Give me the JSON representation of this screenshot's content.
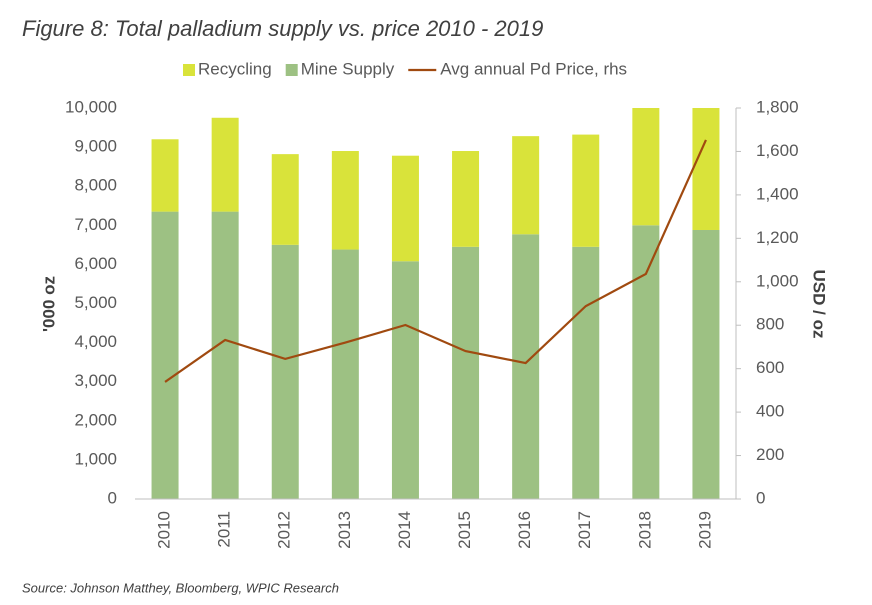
{
  "chart_data": {
    "type": "bar",
    "title": "Figure 8: Total palladium supply vs. price 2010 - 2019",
    "y_label": "'000 oz",
    "y2_label": "USD / oz",
    "source": "Source: Johnson Matthey, Bloomberg, WPIC Research",
    "categories": [
      "2010",
      "2011",
      "2012",
      "2013",
      "2014",
      "2015",
      "2016",
      "2017",
      "2018",
      "2019"
    ],
    "stacked": true,
    "series": [
      {
        "name": "Recycling",
        "color": "#d9e33a",
        "values": [
          1850,
          2400,
          2320,
          2520,
          2700,
          2450,
          2510,
          2870,
          3000,
          3120
        ]
      },
      {
        "name": "Mine Supply",
        "color": "#9dc183",
        "values": [
          7350,
          7350,
          6500,
          6380,
          6080,
          6450,
          6770,
          6450,
          7000,
          6880
        ]
      },
      {
        "name": "Avg annual Pd Price, rhs",
        "color": "#a04a10",
        "axis": "y2",
        "values": [
          539,
          732,
          645,
          720,
          801,
          681,
          626,
          888,
          1036,
          1653
        ]
      }
    ],
    "ylim": [
      0,
      10000
    ],
    "yticks": [
      0,
      {
        "value": 1000,
        "label": "1,000"
      },
      {
        "value": 2000,
        "label": "2,000"
      },
      {
        "value": 3000,
        "label": "3,000"
      },
      {
        "value": 4000,
        "label": "4,000"
      },
      {
        "value": 5000,
        "label": "5,000"
      },
      {
        "value": 6000,
        "label": "6,000"
      },
      {
        "value": 7000,
        "label": "7,000"
      },
      {
        "value": 8000,
        "label": "8,000"
      },
      {
        "value": 9000,
        "label": "9,000"
      },
      {
        "value": 10000,
        "label": "10,000"
      }
    ],
    "y2lim": [
      0,
      1800
    ],
    "y2ticks": [
      0,
      200,
      400,
      600,
      800,
      {
        "value": 1000,
        "label": "1,000"
      },
      {
        "value": 1200,
        "label": "1,200"
      },
      {
        "value": 1400,
        "label": "1,400"
      },
      {
        "value": 1600,
        "label": "1,600"
      },
      {
        "value": 1800,
        "label": "1,800"
      }
    ],
    "grid": false,
    "legend": "top"
  }
}
